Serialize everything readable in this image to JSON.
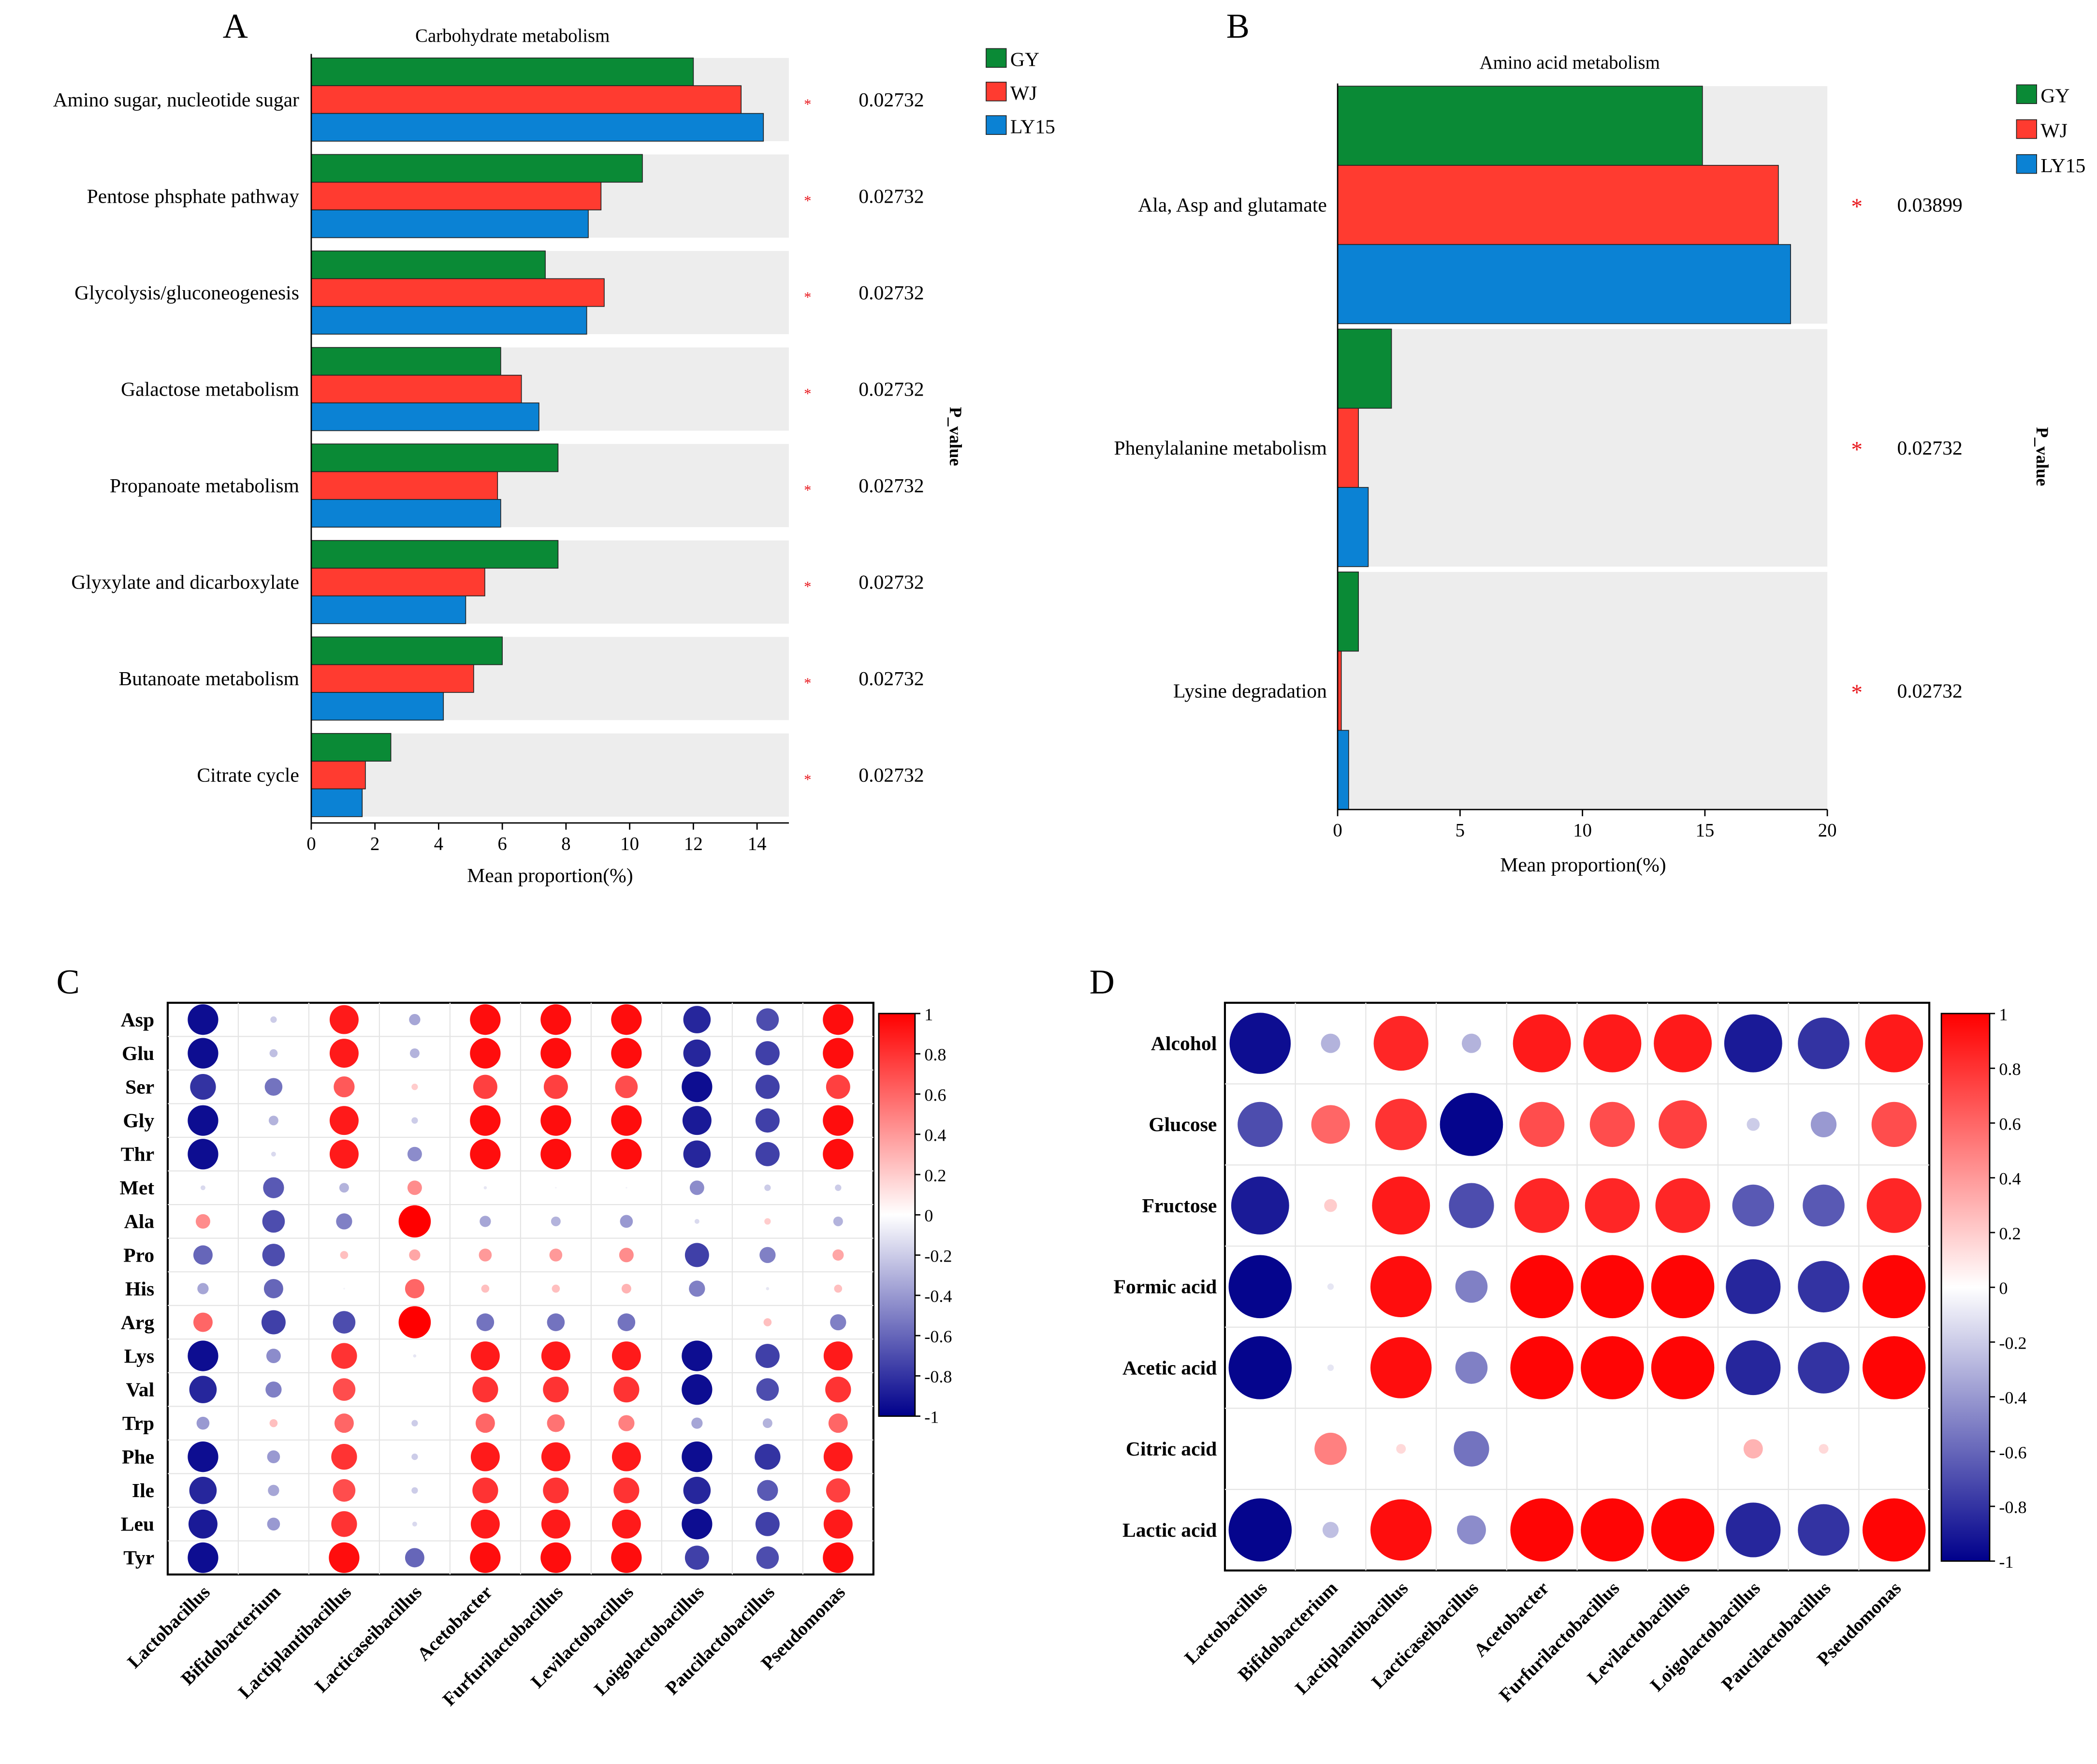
{
  "chart_data": [
    {
      "panel": "A",
      "type": "bar",
      "orientation": "horizontal",
      "title": "Carbohydrate metabolism",
      "xlabel": "Mean proportion(%)",
      "pvalue_label": "P_value",
      "xlim": [
        0,
        15
      ],
      "xticks": [
        0,
        2,
        4,
        6,
        8,
        10,
        12,
        14
      ],
      "categories": [
        "Amino sugar, nucleotide sugar",
        "Pentose phsphate pathway",
        "Glycolysis/gluconeogenesis",
        "Galactose metabolism",
        "Propanoate metabolism",
        "Glyxylate and dicarboxylate",
        "Butanoate metabolism",
        "Citrate cycle"
      ],
      "series": [
        {
          "name": "GY",
          "color": "#0a8a36",
          "values": [
            12.0,
            10.4,
            7.35,
            5.95,
            7.75,
            7.75,
            6.0,
            2.5
          ]
        },
        {
          "name": "WJ",
          "color": "#ff3b30",
          "values": [
            13.5,
            9.1,
            9.2,
            6.6,
            5.85,
            5.45,
            5.1,
            1.7
          ]
        },
        {
          "name": "LY15",
          "color": "#0b82d4",
          "values": [
            14.2,
            8.7,
            8.65,
            7.15,
            5.95,
            4.85,
            4.15,
            1.6
          ]
        }
      ],
      "pvalues": [
        "0.02732",
        "0.02732",
        "0.02732",
        "0.02732",
        "0.02732",
        "0.02732",
        "0.02732",
        "0.02732"
      ],
      "significance": [
        "*",
        "*",
        "*",
        "*",
        "*",
        "*",
        "*",
        "*"
      ]
    },
    {
      "panel": "B",
      "type": "bar",
      "orientation": "horizontal",
      "title": "Amino acid metabolism",
      "xlabel": "Mean proportion(%)",
      "pvalue_label": "P_value",
      "xlim": [
        0,
        20
      ],
      "xticks": [
        0,
        5,
        10,
        15,
        20
      ],
      "categories": [
        "Ala, Asp and glutamate",
        "Phenylalanine metabolism",
        "Lysine degradation"
      ],
      "series": [
        {
          "name": "GY",
          "color": "#0a8a36",
          "values": [
            14.9,
            2.2,
            0.85
          ]
        },
        {
          "name": "WJ",
          "color": "#ff3b30",
          "values": [
            18.0,
            0.85,
            0.15
          ]
        },
        {
          "name": "LY15",
          "color": "#0b82d4",
          "values": [
            18.5,
            1.25,
            0.45
          ]
        }
      ],
      "pvalues": [
        "0.03899",
        "0.02732",
        "0.02732"
      ],
      "significance": [
        "*",
        "*",
        "*"
      ]
    },
    {
      "panel": "C",
      "type": "heatmap",
      "style": "bubble-correlation",
      "rows": [
        "Asp",
        "Glu",
        "Ser",
        "Gly",
        "Thr",
        "Met",
        "Ala",
        "Pro",
        "His",
        "Arg",
        "Lys",
        "Val",
        "Trp",
        "Phe",
        "Ile",
        "Leu",
        "Tyr"
      ],
      "cols": [
        "Lactobacillus",
        "Bifidobacterium",
        "Lactiplantibacillus",
        "Lacticaseibacillus",
        "Acetobacter",
        "Furfurilactobacillus",
        "Levilactobacillus",
        "Loigolactobacillus",
        "Paucilactobacillus",
        "Pseudomonas"
      ],
      "values": [
        [
          -0.95,
          -0.2,
          0.9,
          -0.35,
          0.95,
          0.95,
          0.95,
          -0.85,
          -0.7,
          0.95
        ],
        [
          -0.95,
          -0.25,
          0.9,
          -0.3,
          0.95,
          0.95,
          0.95,
          -0.85,
          -0.75,
          0.95
        ],
        [
          -0.8,
          -0.55,
          0.65,
          0.2,
          0.75,
          0.75,
          0.7,
          -0.95,
          -0.75,
          0.75
        ],
        [
          -0.95,
          -0.3,
          0.9,
          -0.2,
          0.95,
          0.95,
          0.95,
          -0.9,
          -0.75,
          0.95
        ],
        [
          -0.95,
          -0.15,
          0.9,
          -0.45,
          0.95,
          0.95,
          0.95,
          -0.85,
          -0.75,
          0.95
        ],
        [
          -0.15,
          -0.65,
          -0.3,
          0.45,
          -0.1,
          -0.05,
          -0.05,
          -0.45,
          -0.2,
          -0.2
        ],
        [
          0.45,
          -0.7,
          -0.5,
          1.0,
          -0.35,
          -0.3,
          -0.4,
          -0.15,
          0.2,
          -0.3
        ],
        [
          -0.6,
          -0.7,
          0.25,
          0.35,
          0.4,
          0.4,
          0.45,
          -0.75,
          -0.5,
          0.35
        ],
        [
          -0.35,
          -0.6,
          -0.05,
          0.6,
          0.25,
          0.25,
          0.3,
          -0.5,
          -0.1,
          0.25
        ],
        [
          0.6,
          -0.75,
          -0.7,
          1.0,
          -0.55,
          -0.55,
          -0.55,
          0.0,
          0.25,
          -0.5
        ],
        [
          -0.95,
          -0.45,
          0.8,
          -0.1,
          0.9,
          0.9,
          0.9,
          -0.95,
          -0.75,
          0.9
        ],
        [
          -0.85,
          -0.5,
          0.7,
          0.0,
          0.8,
          0.8,
          0.8,
          -0.95,
          -0.7,
          0.8
        ],
        [
          -0.4,
          0.25,
          0.6,
          -0.2,
          0.6,
          0.55,
          0.5,
          -0.35,
          -0.3,
          0.6
        ],
        [
          -0.95,
          -0.4,
          0.8,
          -0.2,
          0.9,
          0.9,
          0.9,
          -0.95,
          -0.8,
          0.9
        ],
        [
          -0.85,
          -0.35,
          0.7,
          -0.2,
          0.8,
          0.8,
          0.8,
          -0.85,
          -0.65,
          0.75
        ],
        [
          -0.9,
          -0.4,
          0.8,
          -0.15,
          0.9,
          0.9,
          0.9,
          -0.95,
          -0.75,
          0.9
        ],
        [
          -0.95,
          0.0,
          0.95,
          -0.6,
          0.95,
          0.95,
          0.95,
          -0.75,
          -0.7,
          0.95
        ]
      ],
      "colorbar": {
        "min": -1,
        "max": 1,
        "ticks": [
          "1",
          "0.8",
          "0.6",
          "0.4",
          "0.2",
          "0",
          "-0.2",
          "-0.4",
          "-0.6",
          "-0.8",
          "-1"
        ]
      }
    },
    {
      "panel": "D",
      "type": "heatmap",
      "style": "bubble-correlation",
      "rows": [
        "Alcohol",
        "Glucose",
        "Fructose",
        "Formic acid",
        "Acetic acid",
        "Citric acid",
        "Lactic acid"
      ],
      "cols": [
        "Lactobacillus",
        "Bifidobacterium",
        "Lactiplantibacillus",
        "Lacticaseibacillus",
        "Acetobacter",
        "Furfurilactobacillus",
        "Levilactobacillus",
        "Loigolactobacillus",
        "Paucilactobacillus",
        "Pseudomonas"
      ],
      "values": [
        [
          -0.95,
          -0.3,
          0.85,
          -0.3,
          0.9,
          0.9,
          0.9,
          -0.9,
          -0.8,
          0.9
        ],
        [
          -0.7,
          0.6,
          0.8,
          -0.98,
          0.7,
          0.7,
          0.75,
          -0.2,
          -0.4,
          0.7
        ],
        [
          -0.9,
          0.2,
          0.9,
          -0.7,
          0.85,
          0.85,
          0.85,
          -0.65,
          -0.65,
          0.85
        ],
        [
          -0.98,
          -0.1,
          0.95,
          -0.5,
          0.98,
          0.98,
          0.98,
          -0.85,
          -0.8,
          0.98
        ],
        [
          -0.98,
          -0.1,
          0.95,
          -0.5,
          0.98,
          0.98,
          0.98,
          -0.85,
          -0.8,
          0.98
        ],
        [
          0.0,
          0.5,
          0.15,
          -0.55,
          0.0,
          0.0,
          0.0,
          0.3,
          0.15,
          0.0
        ],
        [
          -0.98,
          -0.25,
          0.95,
          -0.45,
          0.98,
          0.98,
          0.98,
          -0.85,
          -0.8,
          0.98
        ]
      ],
      "colorbar": {
        "min": -1,
        "max": 1,
        "ticks": [
          "1",
          "0.8",
          "0.6",
          "0.4",
          "0.2",
          "0",
          "-0.2",
          "-0.4",
          "-0.6",
          "-0.8",
          "-1"
        ]
      }
    }
  ],
  "panel_labels": [
    "A",
    "B",
    "C",
    "D"
  ]
}
